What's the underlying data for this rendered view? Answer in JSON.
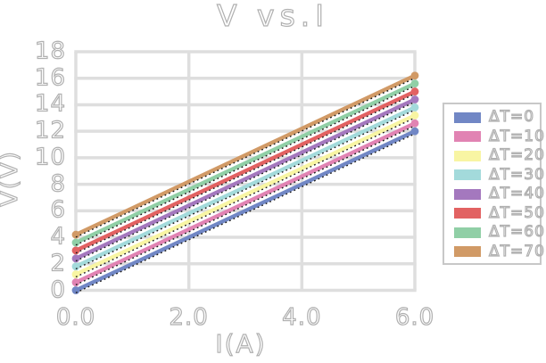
{
  "colors": {
    "background": "#ffffff",
    "grid": "#dedede",
    "text_fill": "#ffffff",
    "text_outline": "#b0b0b0",
    "legend_border": "#c8c8c8",
    "trendline": "#1a1a1a"
  },
  "chart_data": {
    "type": "line",
    "title": "V vs.I",
    "xlabel": "I(A)",
    "ylabel": "V(V)",
    "xlim": [
      0,
      6
    ],
    "ylim": [
      0,
      18
    ],
    "grid": true,
    "legend_position": "right",
    "x_tick_values": [
      0,
      2,
      4,
      6
    ],
    "x_tick_labels": [
      "0.0",
      "2.0",
      "4.0",
      "6.0"
    ],
    "y_tick_values": [
      0,
      2,
      4,
      6,
      8,
      10,
      12,
      14,
      16,
      18
    ],
    "y_tick_labels": [
      "0",
      "2",
      "4",
      "6",
      "8",
      "10",
      "12",
      "14",
      "16",
      "18"
    ],
    "x": [
      0,
      6
    ],
    "series": [
      {
        "name": "ΔT=0",
        "color": "#7187c5",
        "values": [
          0.0,
          12.0
        ]
      },
      {
        "name": "ΔT=10",
        "color": "#e183b3",
        "values": [
          0.6,
          12.6
        ]
      },
      {
        "name": "ΔT=20",
        "color": "#f8f5a3",
        "values": [
          1.2,
          13.2
        ]
      },
      {
        "name": "ΔT=30",
        "color": "#a3dadb",
        "values": [
          1.8,
          13.8
        ]
      },
      {
        "name": "ΔT=40",
        "color": "#a478be",
        "values": [
          2.4,
          14.4
        ]
      },
      {
        "name": "ΔT=50",
        "color": "#e26262",
        "values": [
          3.0,
          15.0
        ]
      },
      {
        "name": "ΔT=60",
        "color": "#90cfa6",
        "values": [
          3.6,
          15.6
        ]
      },
      {
        "name": "ΔT=70",
        "color": "#d19a66",
        "values": [
          4.2,
          16.2
        ]
      }
    ],
    "trendline": {
      "style": "dotted",
      "per_series": true
    }
  }
}
